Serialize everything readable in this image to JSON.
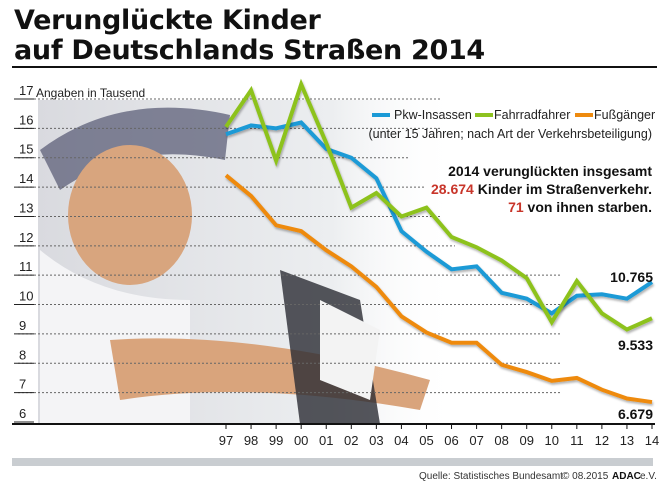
{
  "title_line1": "Verunglückte Kinder",
  "title_line2": "auf Deutschlands Straßen 2014",
  "chart_data": {
    "type": "line",
    "title": "Verunglückte Kinder auf Deutschlands Straßen 2014",
    "ylabel": "Angaben in Tausend",
    "subtitle": "(unter 15 Jahren; nach Art der Verkehrsbeteiligung)",
    "categories": [
      "97",
      "98",
      "99",
      "00",
      "01",
      "02",
      "03",
      "04",
      "05",
      "06",
      "07",
      "08",
      "09",
      "10",
      "11",
      "12",
      "13",
      "14"
    ],
    "ylim": [
      6,
      17
    ],
    "yticks": [
      17,
      16,
      15,
      14,
      13,
      12,
      11,
      10,
      9,
      8,
      7,
      6
    ],
    "grid": true,
    "legend_placement": "top-right",
    "series": [
      {
        "name": "Pkw-Insassen",
        "color": "#1a9ad6",
        "values": [
          15.8,
          16.1,
          16.0,
          16.2,
          15.3,
          15.0,
          14.3,
          12.5,
          11.8,
          11.2,
          11.3,
          10.4,
          10.2,
          9.7,
          10.3,
          10.35,
          10.2,
          10.765
        ]
      },
      {
        "name": "Fahrradfahrer",
        "color": "#8dc21f",
        "values": [
          16.05,
          17.3,
          14.9,
          17.5,
          15.5,
          13.3,
          13.8,
          13.0,
          13.3,
          12.3,
          11.95,
          11.5,
          10.9,
          9.4,
          10.8,
          9.7,
          9.15,
          9.533
        ]
      },
      {
        "name": "Fußgänger",
        "color": "#ee8a0e",
        "values": [
          14.4,
          13.7,
          12.7,
          12.5,
          11.85,
          11.3,
          10.6,
          9.6,
          9.05,
          8.7,
          8.7,
          7.95,
          7.7,
          7.4,
          7.5,
          7.1,
          6.8,
          6.679
        ]
      }
    ],
    "end_labels": [
      "10.765",
      "9.533",
      "6.679"
    ]
  },
  "annotation": {
    "line1": "2014 verunglückten insgesamt",
    "total": "28.674",
    "line2": " Kinder im Straßenverkehr.",
    "deaths": "71",
    "line3": " von ihnen starben.",
    "highlight_color": "#c8352a"
  },
  "footer": {
    "source": "Quelle:  Statistisches Bundesamt",
    "copyright": "© 08.2015",
    "brand": "ADAC",
    "brand_suffix": " e.V."
  }
}
